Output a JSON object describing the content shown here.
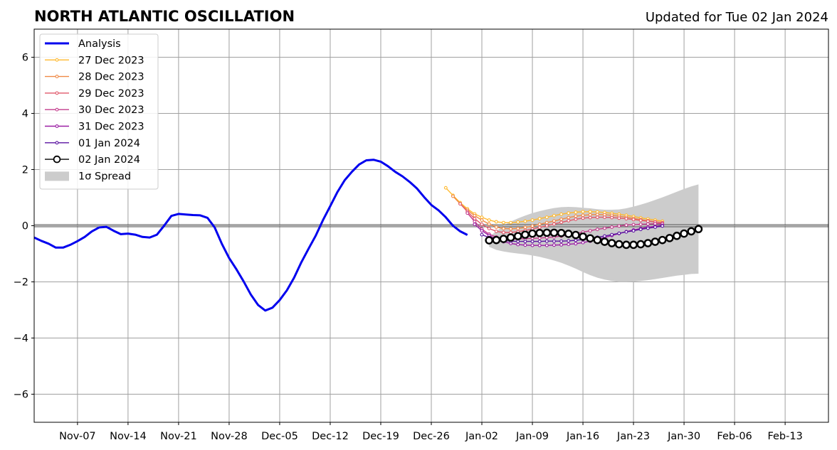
{
  "chart_data": {
    "type": "line",
    "title": "NORTH ATLANTIC OSCILLATION",
    "subtitle": "Updated for Tue 02 Jan 2024",
    "xlabel": "",
    "ylabel": "",
    "x_range": [
      "2023-11-01",
      "2024-02-19"
    ],
    "ylim": [
      -7,
      7
    ],
    "y_ticks": [
      -6,
      -4,
      -2,
      0,
      2,
      4,
      6
    ],
    "y_tick_labels": [
      "−6",
      "−4",
      "−2",
      "0",
      "2",
      "4",
      "6"
    ],
    "x_ticks": [
      {
        "date": "2023-11-07",
        "label": "Nov-07"
      },
      {
        "date": "2023-11-14",
        "label": "Nov-14"
      },
      {
        "date": "2023-11-21",
        "label": "Nov-21"
      },
      {
        "date": "2023-11-28",
        "label": "Nov-28"
      },
      {
        "date": "2023-12-05",
        "label": "Dec-05"
      },
      {
        "date": "2023-12-12",
        "label": "Dec-12"
      },
      {
        "date": "2023-12-19",
        "label": "Dec-19"
      },
      {
        "date": "2023-12-26",
        "label": "Dec-26"
      },
      {
        "date": "2024-01-02",
        "label": "Jan-02"
      },
      {
        "date": "2024-01-09",
        "label": "Jan-09"
      },
      {
        "date": "2024-01-16",
        "label": "Jan-16"
      },
      {
        "date": "2024-01-23",
        "label": "Jan-23"
      },
      {
        "date": "2024-01-30",
        "label": "Jan-30"
      },
      {
        "date": "2024-02-06",
        "label": "Feb-06"
      },
      {
        "date": "2024-02-13",
        "label": "Feb-13"
      }
    ],
    "grid": true,
    "legend_position": "top-left",
    "zero_line": true,
    "analysis": {
      "name": "Analysis",
      "color": "#0000ee",
      "start_date": "2023-11-01",
      "values": [
        -0.42,
        -0.54,
        -0.64,
        -0.78,
        -0.78,
        -0.68,
        -0.55,
        -0.4,
        -0.2,
        -0.06,
        -0.04,
        -0.18,
        -0.3,
        -0.28,
        -0.32,
        -0.4,
        -0.42,
        -0.32,
        0.0,
        0.35,
        0.42,
        0.4,
        0.38,
        0.37,
        0.28,
        -0.06,
        -0.65,
        -1.15,
        -1.55,
        -1.98,
        -2.45,
        -2.82,
        -3.02,
        -2.92,
        -2.65,
        -2.3,
        -1.85,
        -1.3,
        -0.82,
        -0.35,
        0.2,
        0.7,
        1.2,
        1.62,
        1.92,
        2.18,
        2.33,
        2.35,
        2.28,
        2.12,
        1.92,
        1.76,
        1.56,
        1.33,
        1.02,
        0.74,
        0.55,
        0.3,
        0.0,
        -0.2,
        -0.33
      ]
    },
    "forecasts": [
      {
        "name": "27 Dec 2023",
        "color": "#ffb92e",
        "start_date": "2023-12-28",
        "values": [
          1.35,
          1.08,
          0.82,
          0.6,
          0.42,
          0.3,
          0.2,
          0.14,
          0.11,
          0.11,
          0.13,
          0.16,
          0.2,
          0.25,
          0.3,
          0.36,
          0.41,
          0.45,
          0.48,
          0.5,
          0.5,
          0.49,
          0.47,
          0.44,
          0.41,
          0.37,
          0.33,
          0.28,
          0.24,
          0.2,
          0.16
        ]
      },
      {
        "name": "28 Dec 2023",
        "color": "#f08a46",
        "start_date": "2023-12-29",
        "values": [
          1.05,
          0.78,
          0.55,
          0.36,
          0.2,
          0.06,
          -0.05,
          -0.1,
          -0.11,
          -0.1,
          -0.06,
          -0.01,
          0.05,
          0.11,
          0.17,
          0.23,
          0.29,
          0.34,
          0.37,
          0.39,
          0.4,
          0.39,
          0.37,
          0.34,
          0.3,
          0.26,
          0.22,
          0.18,
          0.14,
          0.11
        ]
      },
      {
        "name": "29 Dec 2023",
        "color": "#e0586a",
        "start_date": "2023-12-30",
        "values": [
          0.78,
          0.5,
          0.25,
          0.05,
          -0.1,
          -0.2,
          -0.24,
          -0.24,
          -0.21,
          -0.17,
          -0.12,
          -0.06,
          0.0,
          0.06,
          0.12,
          0.18,
          0.23,
          0.27,
          0.29,
          0.3,
          0.3,
          0.29,
          0.27,
          0.25,
          0.22,
          0.19,
          0.16,
          0.13,
          0.1
        ]
      },
      {
        "name": "30 Dec 2023",
        "color": "#c33b8c",
        "start_date": "2023-12-31",
        "values": [
          0.45,
          0.15,
          -0.12,
          -0.3,
          -0.4,
          -0.45,
          -0.47,
          -0.47,
          -0.46,
          -0.45,
          -0.44,
          -0.42,
          -0.4,
          -0.37,
          -0.33,
          -0.28,
          -0.23,
          -0.18,
          -0.13,
          -0.09,
          -0.05,
          -0.01,
          0.02,
          0.04,
          0.05,
          0.06,
          0.07,
          0.07
        ]
      },
      {
        "name": "31 Dec 2023",
        "color": "#9b1fa4",
        "start_date": "2024-01-01",
        "values": [
          0.05,
          -0.18,
          -0.35,
          -0.48,
          -0.57,
          -0.63,
          -0.67,
          -0.69,
          -0.7,
          -0.7,
          -0.7,
          -0.69,
          -0.68,
          -0.66,
          -0.64,
          -0.6,
          -0.55,
          -0.49,
          -0.42,
          -0.35,
          -0.28,
          -0.21,
          -0.15,
          -0.1,
          -0.05,
          -0.02,
          0.01
        ]
      },
      {
        "name": "01 Jan 2024",
        "color": "#5a12a0",
        "start_date": "2024-01-02",
        "values": [
          -0.32,
          -0.42,
          -0.49,
          -0.53,
          -0.55,
          -0.56,
          -0.56,
          -0.56,
          -0.56,
          -0.55,
          -0.55,
          -0.55,
          -0.54,
          -0.52,
          -0.49,
          -0.45,
          -0.41,
          -0.37,
          -0.32,
          -0.27,
          -0.22,
          -0.18,
          -0.13,
          -0.09,
          -0.05,
          -0.01
        ]
      }
    ],
    "latest_forecast": {
      "name": "02 Jan 2024",
      "color": "#000000",
      "start_date": "2024-01-03",
      "values": [
        -0.52,
        -0.51,
        -0.47,
        -0.42,
        -0.37,
        -0.32,
        -0.28,
        -0.26,
        -0.25,
        -0.25,
        -0.26,
        -0.29,
        -0.33,
        -0.39,
        -0.45,
        -0.51,
        -0.57,
        -0.62,
        -0.66,
        -0.68,
        -0.68,
        -0.66,
        -0.62,
        -0.57,
        -0.51,
        -0.44,
        -0.36,
        -0.28,
        -0.2,
        -0.12
      ]
    },
    "spread": {
      "name": "1σ Spread",
      "color": "#cccccc",
      "start_date": "2024-01-03",
      "upper": [
        -0.4,
        -0.2,
        0.0,
        0.15,
        0.26,
        0.36,
        0.45,
        0.52,
        0.58,
        0.63,
        0.66,
        0.67,
        0.66,
        0.64,
        0.62,
        0.59,
        0.57,
        0.57,
        0.58,
        0.62,
        0.68,
        0.75,
        0.83,
        0.92,
        1.01,
        1.11,
        1.21,
        1.31,
        1.4,
        1.47
      ],
      "lower": [
        -0.75,
        -0.86,
        -0.92,
        -0.96,
        -0.99,
        -1.02,
        -1.06,
        -1.11,
        -1.17,
        -1.24,
        -1.32,
        -1.42,
        -1.53,
        -1.65,
        -1.76,
        -1.85,
        -1.92,
        -1.97,
        -2.0,
        -2.0,
        -1.99,
        -1.97,
        -1.94,
        -1.9,
        -1.86,
        -1.82,
        -1.78,
        -1.75,
        -1.72,
        -1.71
      ]
    }
  }
}
